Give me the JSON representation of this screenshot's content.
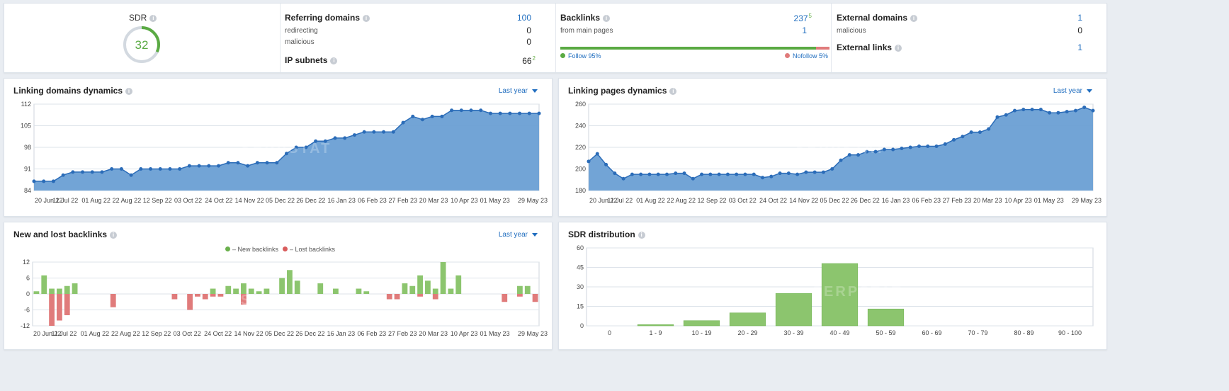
{
  "summary": {
    "sdr": {
      "label": "SDR",
      "value": "32",
      "ring_fraction": 0.32
    },
    "referring": {
      "label": "Referring domains",
      "value": "100",
      "redirecting_label": "redirecting",
      "redirecting_value": "0",
      "malicious_label": "malicious",
      "malicious_value": "0",
      "ip_label": "IP subnets",
      "ip_value": "66",
      "ip_delta": "2"
    },
    "backlinks": {
      "label": "Backlinks",
      "value": "237",
      "delta": "5",
      "from_main_label": "from main pages",
      "from_main_value": "1",
      "follow_label": "Follow 95%",
      "nofollow_label": "Nofollow 5%",
      "follow_fraction": 0.95
    },
    "external": {
      "domains_label": "External domains",
      "domains_value": "1",
      "malicious_label": "malicious",
      "malicious_value": "0",
      "links_label": "External links",
      "links_value": "1"
    }
  },
  "panels": {
    "linking_domains": {
      "title": "Linking domains dynamics",
      "period": "Last year"
    },
    "linking_pages": {
      "title": "Linking pages dynamics",
      "period": "Last year"
    },
    "new_lost": {
      "title": "New and lost backlinks",
      "period": "Last year",
      "legend_new": "– New backlinks",
      "legend_lost": "– Lost backlinks"
    },
    "sdr_dist": {
      "title": "SDR distribution"
    }
  },
  "watermark": "SERPSTAT",
  "colors": {
    "area_fill": "#6a9fd4",
    "area_line": "#2b6cb8",
    "new": "#8cc56e",
    "lost": "#e07b7b",
    "accent": "#1f6dbf",
    "ring": "#5aaa43"
  },
  "chart_data": [
    {
      "type": "area",
      "title": "Linking domains dynamics",
      "x_tick_labels": [
        "20 Jun 22",
        "11 Jul 22",
        "01 Aug 22",
        "22 Aug 22",
        "12 Sep 22",
        "03 Oct 22",
        "24 Oct 22",
        "14 Nov 22",
        "05 Dec 22",
        "26 Dec 22",
        "16 Jan 23",
        "06 Feb 23",
        "27 Feb 23",
        "20 Mar 23",
        "10 Apr 23",
        "01 May 23",
        "29 May 23"
      ],
      "y_ticks": [
        84,
        91,
        98,
        105,
        112
      ],
      "ylim": [
        84,
        112
      ],
      "values": [
        87,
        87,
        87,
        89,
        90,
        90,
        90,
        90,
        91,
        91,
        89,
        91,
        91,
        91,
        91,
        91,
        92,
        92,
        92,
        92,
        93,
        93,
        92,
        93,
        93,
        93,
        96,
        98,
        98,
        100,
        100,
        101,
        101,
        102,
        103,
        103,
        103,
        103,
        106,
        108,
        107,
        108,
        108,
        110,
        110,
        110,
        110,
        109,
        109,
        109,
        109,
        109,
        109
      ]
    },
    {
      "type": "area",
      "title": "Linking pages dynamics",
      "x_tick_labels": [
        "20 Jun 22",
        "11 Jul 22",
        "01 Aug 22",
        "22 Aug 22",
        "12 Sep 22",
        "03 Oct 22",
        "24 Oct 22",
        "14 Nov 22",
        "05 Dec 22",
        "26 Dec 22",
        "16 Jan 23",
        "06 Feb 23",
        "27 Feb 23",
        "20 Mar 23",
        "10 Apr 23",
        "01 May 23",
        "29 May 23"
      ],
      "y_ticks": [
        180,
        200,
        220,
        240,
        260
      ],
      "ylim": [
        180,
        260
      ],
      "values": [
        207,
        214,
        204,
        196,
        191,
        195,
        195,
        195,
        195,
        195,
        196,
        196,
        191,
        195,
        195,
        195,
        195,
        195,
        195,
        195,
        192,
        193,
        196,
        196,
        195,
        197,
        197,
        197,
        200,
        208,
        213,
        213,
        216,
        216,
        218,
        218,
        219,
        220,
        221,
        221,
        221,
        223,
        227,
        230,
        234,
        234,
        237,
        248,
        250,
        254,
        255,
        255,
        255,
        252,
        252,
        253,
        254,
        257,
        254
      ]
    },
    {
      "type": "bar",
      "title": "New and lost backlinks",
      "x_tick_labels": [
        "20 Jun 22",
        "11 Jul 22",
        "01 Aug 22",
        "22 Aug 22",
        "12 Sep 22",
        "03 Oct 22",
        "24 Oct 22",
        "14 Nov 22",
        "05 Dec 22",
        "26 Dec 22",
        "16 Jan 23",
        "06 Feb 23",
        "27 Feb 23",
        "20 Mar 23",
        "10 Apr 23",
        "01 May 23",
        "29 May 23"
      ],
      "y_ticks": [
        -12,
        -6,
        0,
        6,
        12
      ],
      "ylim": [
        -12,
        12
      ],
      "series": [
        {
          "name": "New backlinks",
          "values": [
            1,
            7,
            2,
            2,
            3,
            4,
            0,
            0,
            0,
            0,
            0,
            0,
            0,
            0,
            0,
            0,
            0,
            0,
            0,
            0,
            0,
            0,
            0,
            2,
            0,
            3,
            2,
            4,
            2,
            1,
            2,
            0,
            6,
            9,
            5,
            0,
            0,
            4,
            0,
            2,
            0,
            0,
            2,
            1,
            0,
            0,
            0,
            0,
            4,
            3,
            7,
            5,
            2,
            12,
            2,
            7,
            0,
            0,
            0,
            0,
            0,
            0,
            0,
            3,
            3,
            0
          ]
        },
        {
          "name": "Lost backlinks",
          "values": [
            0,
            0,
            -12,
            -10,
            -8,
            0,
            0,
            0,
            0,
            0,
            -5,
            0,
            0,
            0,
            0,
            0,
            0,
            0,
            -2,
            0,
            -6,
            -1,
            -2,
            -1,
            -1,
            0,
            0,
            -4,
            0,
            0,
            0,
            0,
            0,
            0,
            0,
            0,
            0,
            0,
            0,
            0,
            0,
            0,
            0,
            0,
            0,
            0,
            -2,
            -2,
            0,
            0,
            -1,
            0,
            -2,
            0,
            0,
            0,
            0,
            0,
            0,
            0,
            0,
            -3,
            0,
            -1,
            0,
            -3
          ]
        }
      ]
    },
    {
      "type": "bar",
      "title": "SDR distribution",
      "categories": [
        "0",
        "1 - 9",
        "10 - 19",
        "20 - 29",
        "30 - 39",
        "40 - 49",
        "50 - 59",
        "60 - 69",
        "70 - 79",
        "80 - 89",
        "90 - 100"
      ],
      "values": [
        0,
        1,
        4,
        10,
        25,
        48,
        13,
        0,
        0,
        0,
        0
      ],
      "y_ticks": [
        0,
        15,
        30,
        45,
        60
      ],
      "ylim": [
        0,
        60
      ]
    }
  ]
}
